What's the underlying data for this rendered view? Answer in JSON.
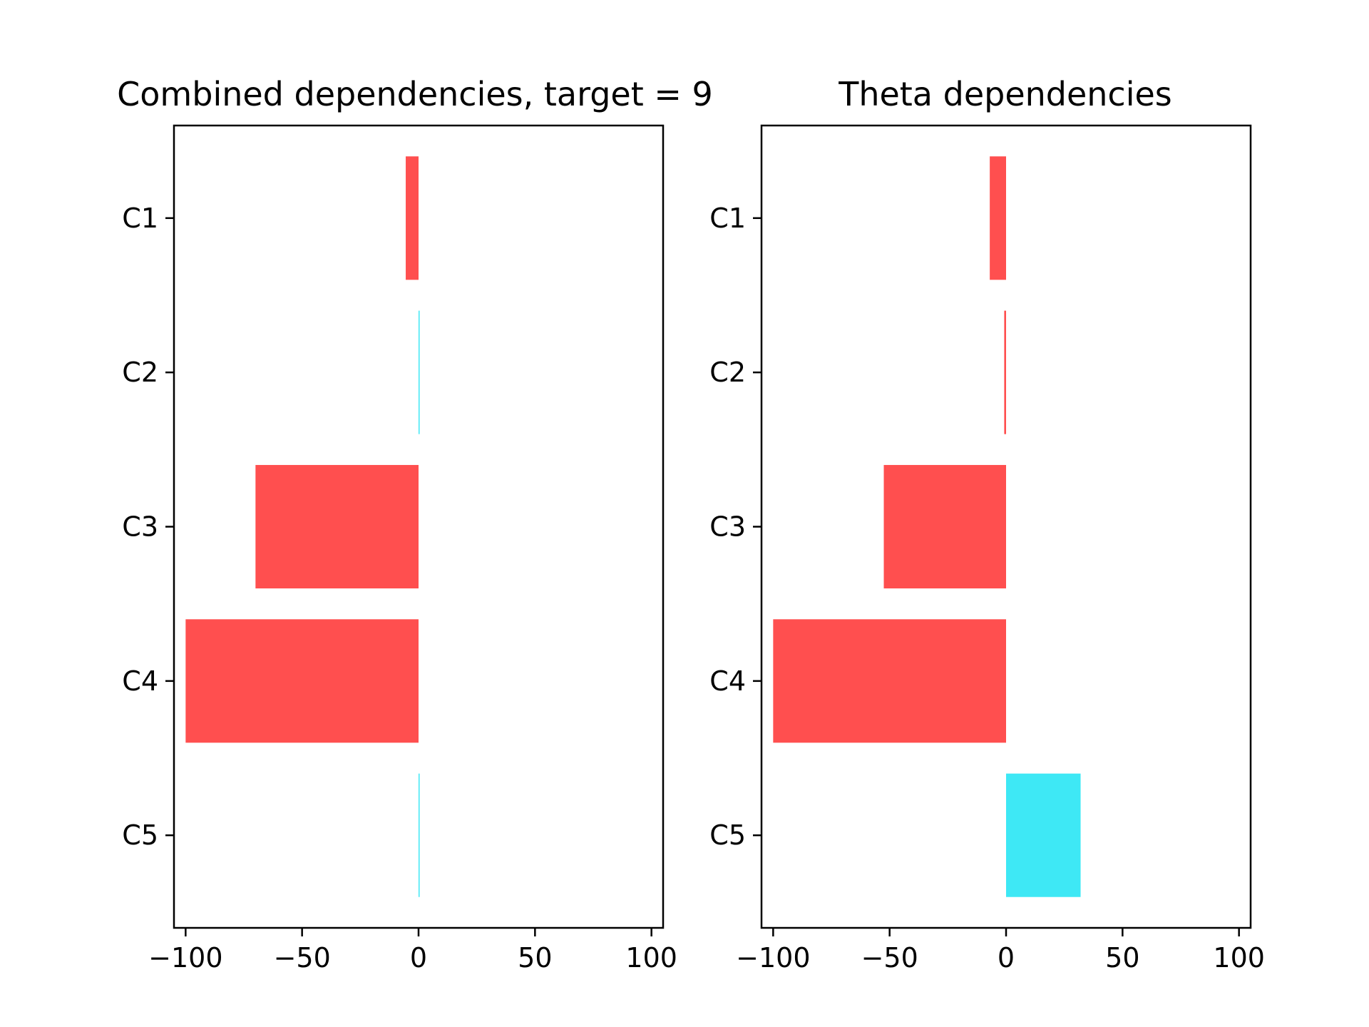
{
  "chart_data": [
    {
      "type": "bar",
      "orientation": "horizontal",
      "title": "Combined dependencies, target = 9",
      "categories": [
        "C1",
        "C2",
        "C3",
        "C4",
        "C5"
      ],
      "values": [
        -5.5,
        0.3,
        -70,
        -100,
        0.3
      ],
      "xticks": [
        "−100",
        "−50",
        "0",
        "50",
        "100"
      ],
      "xtick_values": [
        -100,
        -50,
        0,
        50,
        100
      ],
      "xlim": [
        -105,
        105
      ],
      "xlabel": "",
      "ylabel": "",
      "grid": false,
      "colors": {
        "negative": "#ff4f4f",
        "positive": "#3ee8f5"
      }
    },
    {
      "type": "bar",
      "orientation": "horizontal",
      "title": "Theta dependencies",
      "categories": [
        "C1",
        "C2",
        "C3",
        "C4",
        "C5"
      ],
      "values": [
        -7,
        -0.8,
        -52.5,
        -100,
        32
      ],
      "xticks": [
        "−100",
        "−50",
        "0",
        "50",
        "100"
      ],
      "xtick_values": [
        -100,
        -50,
        0,
        50,
        100
      ],
      "xlim": [
        -105,
        105
      ],
      "xlabel": "",
      "ylabel": "",
      "grid": false,
      "colors": {
        "negative": "#ff4f4f",
        "positive": "#3ee8f5"
      }
    }
  ]
}
